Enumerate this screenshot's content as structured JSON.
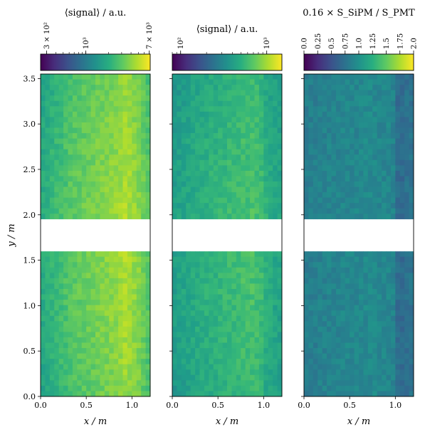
{
  "chart_data": [
    {
      "type": "heatmap",
      "title": "⟨signal⟩ / a.u.",
      "xlabel": "x / m",
      "ylabel": "y / m",
      "xlim": [
        0.0,
        1.2
      ],
      "ylim": [
        0.0,
        3.55
      ],
      "x_ticks": [
        "0.0",
        "0.5",
        "1.0"
      ],
      "y_ticks": [
        "0.0",
        "0.5",
        "1.0",
        "1.5",
        "2.0",
        "2.5",
        "3.0",
        "3.5"
      ],
      "masked_y_range": [
        1.6,
        1.95
      ],
      "colorbar": {
        "scale": "log",
        "range": [
          250,
          7200
        ],
        "tick_labels": [
          "3 × 10²",
          "10³",
          "7 × 10³"
        ],
        "tick_values": [
          300,
          1000,
          7000
        ],
        "colormap": "viridis"
      },
      "column_profile": [
        0.58,
        0.6,
        0.62,
        0.64,
        0.66,
        0.68,
        0.7,
        0.71,
        0.72,
        0.73,
        0.74,
        0.75,
        0.76,
        0.77,
        0.78,
        0.79,
        0.8,
        0.82,
        0.84,
        0.83,
        0.8,
        0.78,
        0.74,
        0.7
      ]
    },
    {
      "type": "heatmap",
      "title": "⟨signal⟩ / a.u.",
      "xlabel": "x / m",
      "xlim": [
        0.0,
        1.2
      ],
      "ylim": [
        0.0,
        3.55
      ],
      "x_ticks": [
        "0.0",
        "0.5",
        "1.0"
      ],
      "masked_y_range": [
        1.6,
        1.95
      ],
      "colorbar": {
        "scale": "log",
        "range": [
          80,
          1500
        ],
        "tick_labels": [
          "10²",
          "10³"
        ],
        "tick_values": [
          100,
          1000
        ],
        "colormap": "viridis"
      },
      "column_profile": [
        0.52,
        0.54,
        0.55,
        0.56,
        0.57,
        0.58,
        0.59,
        0.6,
        0.61,
        0.61,
        0.62,
        0.63,
        0.64,
        0.64,
        0.65,
        0.66,
        0.66,
        0.67,
        0.66,
        0.64,
        0.6,
        0.58,
        0.56,
        0.55
      ]
    },
    {
      "type": "heatmap",
      "title": "0.16 × S_SiPM / S_PMT",
      "xlabel": "x / m",
      "xlim": [
        0.0,
        1.2
      ],
      "ylim": [
        0.0,
        3.55
      ],
      "x_ticks": [
        "0.0",
        "0.5",
        "1.0"
      ],
      "masked_y_range": [
        1.6,
        1.95
      ],
      "colorbar": {
        "scale": "linear",
        "range": [
          0.0,
          2.0
        ],
        "tick_labels": [
          "0.0",
          "0.25",
          "0.5",
          "0.75",
          "1.0",
          "1.25",
          "1.5",
          "1.75",
          "2.0"
        ],
        "tick_values": [
          0.0,
          0.25,
          0.5,
          0.75,
          1.0,
          1.25,
          1.5,
          1.75,
          2.0
        ],
        "colormap": "viridis"
      },
      "column_profile": [
        0.42,
        0.43,
        0.43,
        0.44,
        0.44,
        0.45,
        0.45,
        0.45,
        0.46,
        0.46,
        0.46,
        0.46,
        0.47,
        0.47,
        0.47,
        0.47,
        0.46,
        0.46,
        0.46,
        0.45,
        0.36,
        0.35,
        0.37,
        0.38
      ]
    }
  ]
}
